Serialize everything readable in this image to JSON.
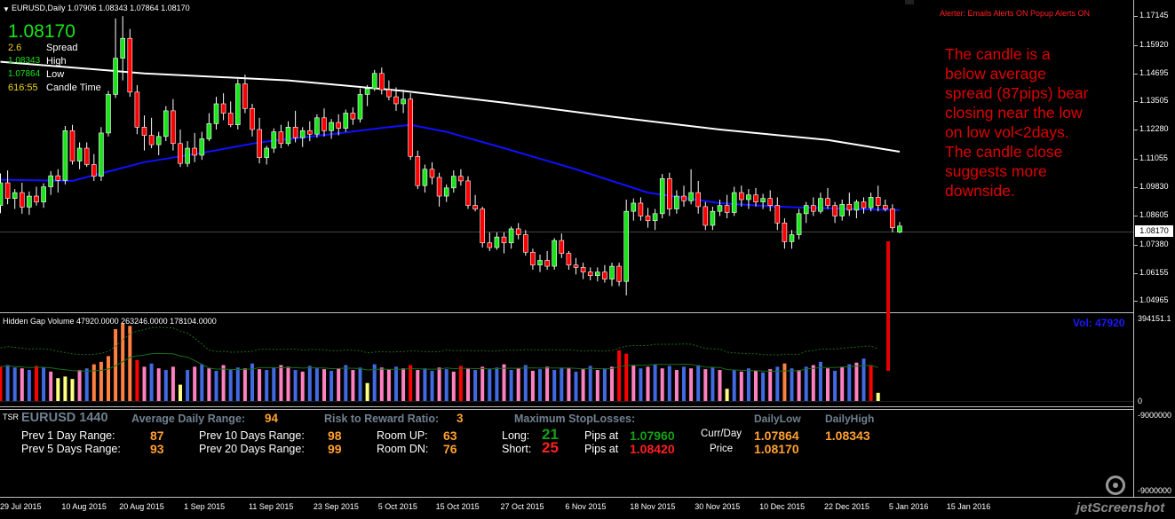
{
  "chart": {
    "header": "EURUSD,Daily  1.07906 1.08343 1.07864 1.08170",
    "alerter": "Alerter:  Emails Alerts ON  Popup Alerts ON",
    "price_big": "1.08170",
    "info": [
      {
        "value": "2.6",
        "label": "Spread",
        "color": "#f0d020"
      },
      {
        "value": "1.08343",
        "label": "High",
        "color": "#19e619"
      },
      {
        "value": "1.07864",
        "label": "Low",
        "color": "#19e619"
      },
      {
        "value": "616:55",
        "label": "Candle Time",
        "color": "#f0d020"
      }
    ],
    "comment": [
      "The candle is a",
      "below average",
      "spread (87pips) bear",
      "closing near the low",
      "on low vol<2days.",
      "The candle close",
      "suggests more",
      "downside."
    ],
    "price_axis": [
      "1.17145",
      "1.15920",
      "1.14695",
      "1.13505",
      "1.12280",
      "1.11055",
      "1.09830",
      "1.08605",
      "1.07380",
      "1.06155",
      "1.04965"
    ],
    "current_price_label": "1.08170",
    "price_range": [
      1.0448,
      1.1765
    ],
    "colors": {
      "bull": "#19e619",
      "bear": "#ff0000",
      "ma_fast": "#1010ff",
      "ma_slow": "#ffffff",
      "annotation": "#e00000"
    }
  },
  "volume": {
    "header": "Hidden Gap Volume 47920.0000 263246.0000 178104.0000",
    "vol_label": "Vol:  47920",
    "axis": [
      "394151.1",
      "0",
      "-9000000"
    ]
  },
  "dates": [
    "29 Jul 2015",
    "10 Aug 2015",
    "20 Aug 2015",
    "1 Sep 2015",
    "11 Sep 2015",
    "23 Sep 2015",
    "5 Oct 2015",
    "15 Oct 2015",
    "27 Oct 2015",
    "6 Nov 2015",
    "18 Nov 2015",
    "30 Nov 2015",
    "10 Dec 2015",
    "22 Dec 2015",
    "5 Jan 2016",
    "15 Jan 2016"
  ],
  "bottom_axis": "-9000000",
  "watermark": "jetScreenshot",
  "tsr": {
    "tag": "TSR",
    "title": "EURUSD 1440",
    "adr_label": "Average Daily Range:",
    "adr_value": "94",
    "rr_label": "Risk to Reward Ratio:",
    "rr_value": "3",
    "msl_label": "Maximum  StopLosses:",
    "prev1_label": "Prev 1 Day Range:",
    "prev1_value": "87",
    "prev5_label": "Prev 5 Days Range:",
    "prev5_value": "93",
    "prev10_label": "Prev 10 Days Range:",
    "prev10_value": "98",
    "prev20_label": "Prev 20 Days Range:",
    "prev20_value": "99",
    "room_up_label": "Room UP:",
    "room_up_value": "63",
    "room_dn_label": "Room DN:",
    "room_dn_value": "76",
    "long_label": "Long:",
    "long_value": "21",
    "short_label": "Short:",
    "short_value": "25",
    "pips_at_label": "Pips at",
    "long_pips": "1.07960",
    "short_pips": "1.08420",
    "currday_label": "Curr/Day",
    "price_label": "Price",
    "daily_low_label": "DailyLow",
    "daily_high_label": "DailyHigh",
    "daily_low": "1.07864",
    "daily_high": "1.08343",
    "price": "1.08170"
  },
  "candles": [
    [
      1.0905,
      1.1042,
      1.0872,
      1.1002
    ],
    [
      1.1002,
      1.1055,
      1.091,
      1.0935
    ],
    [
      1.0935,
      1.0975,
      1.089,
      1.096
    ],
    [
      1.096,
      1.1002,
      1.087,
      1.0898
    ],
    [
      1.0898,
      1.0965,
      1.0865,
      1.0945
    ],
    [
      1.0945,
      1.0985,
      1.0905,
      1.092
    ],
    [
      1.092,
      1.1,
      1.0895,
      1.0985
    ],
    [
      1.0985,
      1.1052,
      1.095,
      1.1032
    ],
    [
      1.1032,
      1.106,
      1.096,
      1.1012
    ],
    [
      1.1012,
      1.1245,
      1.0995,
      1.1225
    ],
    [
      1.1225,
      1.125,
      1.108,
      1.1095
    ],
    [
      1.1095,
      1.1175,
      1.106,
      1.115
    ],
    [
      1.115,
      1.1175,
      1.107,
      1.108
    ],
    [
      1.108,
      1.1125,
      1.101,
      1.103
    ],
    [
      1.103,
      1.124,
      1.101,
      1.1215
    ],
    [
      1.1215,
      1.1395,
      1.12,
      1.138
    ],
    [
      1.138,
      1.1705,
      1.1365,
      1.1535
    ],
    [
      1.1535,
      1.1715,
      1.144,
      1.162
    ],
    [
      1.162,
      1.166,
      1.137,
      1.139
    ],
    [
      1.139,
      1.142,
      1.121,
      1.124
    ],
    [
      1.124,
      1.129,
      1.114,
      1.1205
    ],
    [
      1.1205,
      1.128,
      1.115,
      1.1165
    ],
    [
      1.1165,
      1.122,
      1.112,
      1.12
    ],
    [
      1.12,
      1.133,
      1.118,
      1.131
    ],
    [
      1.131,
      1.136,
      1.114,
      1.117
    ],
    [
      1.117,
      1.123,
      1.107,
      1.1085
    ],
    [
      1.1085,
      1.118,
      1.107,
      1.115
    ],
    [
      1.115,
      1.1215,
      1.109,
      1.112
    ],
    [
      1.112,
      1.122,
      1.11,
      1.119
    ],
    [
      1.119,
      1.13,
      1.118,
      1.1255
    ],
    [
      1.1255,
      1.137,
      1.123,
      1.134
    ],
    [
      1.134,
      1.1385,
      1.127,
      1.13
    ],
    [
      1.13,
      1.135,
      1.124,
      1.125
    ],
    [
      1.125,
      1.1445,
      1.123,
      1.1425
    ],
    [
      1.1425,
      1.1465,
      1.13,
      1.132
    ],
    [
      1.132,
      1.134,
      1.12,
      1.123
    ],
    [
      1.123,
      1.128,
      1.1085,
      1.111
    ],
    [
      1.111,
      1.116,
      1.108,
      1.115
    ],
    [
      1.115,
      1.1235,
      1.113,
      1.122
    ],
    [
      1.122,
      1.125,
      1.115,
      1.117
    ],
    [
      1.117,
      1.1265,
      1.116,
      1.124
    ],
    [
      1.124,
      1.131,
      1.1175,
      1.1195
    ],
    [
      1.1195,
      1.124,
      1.1155,
      1.1225
    ],
    [
      1.1225,
      1.1265,
      1.118,
      1.121
    ],
    [
      1.121,
      1.1295,
      1.1195,
      1.128
    ],
    [
      1.128,
      1.132,
      1.12,
      1.1225
    ],
    [
      1.1225,
      1.1275,
      1.119,
      1.126
    ],
    [
      1.126,
      1.1295,
      1.1205,
      1.1235
    ],
    [
      1.1235,
      1.1315,
      1.122,
      1.13
    ],
    [
      1.13,
      1.1325,
      1.125,
      1.1275
    ],
    [
      1.1275,
      1.1405,
      1.126,
      1.138
    ],
    [
      1.138,
      1.142,
      1.133,
      1.1405
    ],
    [
      1.1405,
      1.1485,
      1.1395,
      1.147
    ],
    [
      1.147,
      1.1495,
      1.138,
      1.14
    ],
    [
      1.14,
      1.144,
      1.1355,
      1.137
    ],
    [
      1.137,
      1.141,
      1.131,
      1.134
    ],
    [
      1.134,
      1.14,
      1.13,
      1.136
    ],
    [
      1.136,
      1.1385,
      1.11,
      1.1115
    ],
    [
      1.1115,
      1.114,
      1.0975,
      1.099
    ],
    [
      1.099,
      1.108,
      1.096,
      1.106
    ],
    [
      1.106,
      1.109,
      1.0995,
      1.1025
    ],
    [
      1.1025,
      1.1045,
      1.09,
      1.0945
    ],
    [
      1.0945,
      1.0995,
      1.092,
      1.098
    ],
    [
      1.098,
      1.1055,
      1.096,
      1.103
    ],
    [
      1.103,
      1.106,
      1.099,
      1.101
    ],
    [
      1.101,
      1.103,
      1.089,
      1.0905
    ],
    [
      1.0905,
      1.095,
      1.088,
      1.089
    ],
    [
      1.089,
      1.09,
      1.0725,
      1.0745
    ],
    [
      1.0745,
      1.079,
      1.071,
      1.0725
    ],
    [
      1.0725,
      1.079,
      1.0715,
      1.077
    ],
    [
      1.077,
      1.079,
      1.07,
      1.0745
    ],
    [
      1.0745,
      1.0815,
      1.072,
      1.0805
    ],
    [
      1.0805,
      1.083,
      1.076,
      1.078
    ],
    [
      1.078,
      1.08,
      1.069,
      1.0705
    ],
    [
      1.0705,
      1.072,
      1.063,
      1.065
    ],
    [
      1.065,
      1.0695,
      1.062,
      1.067
    ],
    [
      1.067,
      1.071,
      1.063,
      1.0645
    ],
    [
      1.0645,
      1.0765,
      1.063,
      1.0755
    ],
    [
      1.0755,
      1.0785,
      1.068,
      1.07
    ],
    [
      1.07,
      1.071,
      1.063,
      1.065
    ],
    [
      1.065,
      1.068,
      1.061,
      1.064
    ],
    [
      1.064,
      1.066,
      1.059,
      1.062
    ],
    [
      1.062,
      1.064,
      1.0585,
      1.0605
    ],
    [
      1.0605,
      1.064,
      1.058,
      1.062
    ],
    [
      1.062,
      1.065,
      1.0575,
      1.059
    ],
    [
      1.059,
      1.066,
      1.056,
      1.0645
    ],
    [
      1.0645,
      1.066,
      1.056,
      1.058
    ],
    [
      1.058,
      1.093,
      1.052,
      1.088
    ],
    [
      1.088,
      1.0935,
      1.084,
      1.0915
    ],
    [
      1.0915,
      1.094,
      1.084,
      1.086
    ],
    [
      1.086,
      1.0895,
      1.081,
      1.084
    ],
    [
      1.084,
      1.089,
      1.08,
      1.087
    ],
    [
      1.087,
      1.104,
      1.085,
      1.102
    ],
    [
      1.102,
      1.1045,
      1.086,
      1.089
    ],
    [
      1.089,
      1.097,
      1.087,
      1.0945
    ],
    [
      1.0945,
      1.099,
      1.09,
      1.0925
    ],
    [
      1.0925,
      1.106,
      1.091,
      1.096
    ],
    [
      1.096,
      1.101,
      1.087,
      1.09
    ],
    [
      1.09,
      1.092,
      1.08,
      1.082
    ],
    [
      1.082,
      1.09,
      1.08,
      1.088
    ],
    [
      1.088,
      1.093,
      1.086,
      1.0905
    ],
    [
      1.0905,
      1.095,
      1.085,
      1.0875
    ],
    [
      1.0875,
      1.0985,
      1.086,
      1.096
    ],
    [
      1.096,
      1.099,
      1.09,
      1.093
    ],
    [
      1.093,
      1.0975,
      1.089,
      1.095
    ],
    [
      1.095,
      1.098,
      1.09,
      1.092
    ],
    [
      1.092,
      1.0955,
      1.089,
      1.0935
    ],
    [
      1.0935,
      1.097,
      1.088,
      1.0905
    ],
    [
      1.0905,
      1.094,
      1.08,
      1.083
    ],
    [
      1.083,
      1.085,
      1.072,
      1.075
    ],
    [
      1.075,
      1.08,
      1.072,
      1.078
    ],
    [
      1.078,
      1.089,
      1.076,
      1.087
    ],
    [
      1.087,
      1.092,
      1.083,
      1.0905
    ],
    [
      1.0905,
      1.094,
      1.086,
      1.088
    ],
    [
      1.088,
      1.096,
      1.087,
      1.0935
    ],
    [
      1.0935,
      1.098,
      1.089,
      1.0905
    ],
    [
      1.0905,
      1.092,
      1.083,
      1.086
    ],
    [
      1.086,
      1.093,
      1.084,
      1.091
    ],
    [
      1.091,
      1.096,
      1.086,
      1.0885
    ],
    [
      1.0885,
      1.093,
      1.085,
      1.092
    ],
    [
      1.092,
      1.094,
      1.087,
      1.0895
    ],
    [
      1.0895,
      1.096,
      1.088,
      1.094
    ],
    [
      1.094,
      1.099,
      1.088,
      1.0905
    ],
    [
      1.0905,
      1.093,
      1.088,
      1.089
    ],
    [
      1.089,
      1.091,
      1.079,
      1.081
    ],
    [
      1.07906,
      1.08343,
      1.07864,
      1.0817
    ]
  ],
  "volumes": [
    [
      42,
      "#ff0000"
    ],
    [
      44,
      "#4169e1"
    ],
    [
      41,
      "#4169e1"
    ],
    [
      40,
      "#ff80c0"
    ],
    [
      38,
      "#4169e1"
    ],
    [
      43,
      "#ff0000"
    ],
    [
      41,
      "#4169e1"
    ],
    [
      36,
      "#ff80c0"
    ],
    [
      28,
      "#ffff80"
    ],
    [
      30,
      "#ffff80"
    ],
    [
      27,
      "#ffff80"
    ],
    [
      38,
      "#ff80c0"
    ],
    [
      40,
      "#4169e1"
    ],
    [
      45,
      "#ff8040"
    ],
    [
      48,
      "#ff8040"
    ],
    [
      55,
      "#ff8040"
    ],
    [
      88,
      "#ff8040"
    ],
    [
      95,
      "#ff8040"
    ],
    [
      92,
      "#ff8040"
    ],
    [
      50,
      "#ff0000"
    ],
    [
      42,
      "#ff80c0"
    ],
    [
      46,
      "#4169e1"
    ],
    [
      40,
      "#ff80c0"
    ],
    [
      38,
      "#4169e1"
    ],
    [
      42,
      "#ff80c0"
    ],
    [
      20,
      "#ffff80"
    ],
    [
      38,
      "#4169e1"
    ],
    [
      42,
      "#ff80c0"
    ],
    [
      45,
      "#4169e1"
    ],
    [
      40,
      "#ff80c0"
    ],
    [
      37,
      "#4169e1"
    ],
    [
      44,
      "#ff80c0"
    ],
    [
      38,
      "#4169e1"
    ],
    [
      41,
      "#4169e1"
    ],
    [
      40,
      "#ff80c0"
    ],
    [
      46,
      "#4169e1"
    ],
    [
      39,
      "#ff80c0"
    ],
    [
      38,
      "#4169e1"
    ],
    [
      41,
      "#4169e1"
    ],
    [
      44,
      "#ff80c0"
    ],
    [
      42,
      "#ff80c0"
    ],
    [
      38,
      "#4169e1"
    ],
    [
      36,
      "#ff80c0"
    ],
    [
      43,
      "#4169e1"
    ],
    [
      40,
      "#4169e1"
    ],
    [
      39,
      "#ff80c0"
    ],
    [
      37,
      "#4169e1"
    ],
    [
      40,
      "#ff80c0"
    ],
    [
      44,
      "#4169e1"
    ],
    [
      38,
      "#ff80c0"
    ],
    [
      41,
      "#4169e1"
    ],
    [
      22,
      "#ffff80"
    ],
    [
      45,
      "#4169e1"
    ],
    [
      41,
      "#ff80c0"
    ],
    [
      39,
      "#ff80c0"
    ],
    [
      42,
      "#4169e1"
    ],
    [
      40,
      "#ff80c0"
    ],
    [
      44,
      "#ff0000"
    ],
    [
      38,
      "#ff80c0"
    ],
    [
      40,
      "#4169e1"
    ],
    [
      37,
      "#4169e1"
    ],
    [
      41,
      "#ff80c0"
    ],
    [
      39,
      "#4169e1"
    ],
    [
      36,
      "#ff80c0"
    ],
    [
      43,
      "#ff0000"
    ],
    [
      40,
      "#ff80c0"
    ],
    [
      38,
      "#4169e1"
    ],
    [
      42,
      "#ff80c0"
    ],
    [
      39,
      "#4169e1"
    ],
    [
      41,
      "#4169e1"
    ],
    [
      45,
      "#ff80c0"
    ],
    [
      38,
      "#4169e1"
    ],
    [
      40,
      "#ff80c0"
    ],
    [
      44,
      "#4169e1"
    ],
    [
      37,
      "#ff80c0"
    ],
    [
      39,
      "#4169e1"
    ],
    [
      42,
      "#ff80c0"
    ],
    [
      38,
      "#4169e1"
    ],
    [
      41,
      "#4169e1"
    ],
    [
      40,
      "#ff80c0"
    ],
    [
      36,
      "#4169e1"
    ],
    [
      39,
      "#ff80c0"
    ],
    [
      43,
      "#4169e1"
    ],
    [
      38,
      "#ff80c0"
    ],
    [
      40,
      "#4169e1"
    ],
    [
      42,
      "#ff80c0"
    ],
    [
      62,
      "#ff0000"
    ],
    [
      58,
      "#ff0000"
    ],
    [
      44,
      "#ff80c0"
    ],
    [
      40,
      "#4169e1"
    ],
    [
      42,
      "#ff80c0"
    ],
    [
      45,
      "#4169e1"
    ],
    [
      40,
      "#ff80c0"
    ],
    [
      43,
      "#4169e1"
    ],
    [
      38,
      "#ff80c0"
    ],
    [
      42,
      "#4169e1"
    ],
    [
      40,
      "#ff80c0"
    ],
    [
      44,
      "#4169e1"
    ],
    [
      39,
      "#ff80c0"
    ],
    [
      41,
      "#4169e1"
    ],
    [
      38,
      "#ff80c0"
    ],
    [
      15,
      "#ffff80"
    ],
    [
      38,
      "#4169e1"
    ],
    [
      36,
      "#ff80c0"
    ],
    [
      40,
      "#4169e1"
    ],
    [
      37,
      "#ff80c0"
    ],
    [
      35,
      "#4169e1"
    ],
    [
      39,
      "#ff80c0"
    ],
    [
      42,
      "#4169e1"
    ],
    [
      46,
      "#ff8040"
    ],
    [
      40,
      "#4169e1"
    ],
    [
      38,
      "#ff80c0"
    ],
    [
      42,
      "#4169e1"
    ],
    [
      44,
      "#ff80c0"
    ],
    [
      48,
      "#4169e1"
    ],
    [
      40,
      "#ff80c0"
    ],
    [
      37,
      "#4169e1"
    ],
    [
      42,
      "#ff80c0"
    ],
    [
      45,
      "#4169e1"
    ],
    [
      47,
      "#ff80c0"
    ],
    [
      52,
      "#4169e1"
    ],
    [
      44,
      "#ff0000"
    ],
    [
      10,
      "#ffff80"
    ]
  ],
  "ma_fast": [
    [
      0,
      1.1015
    ],
    [
      10,
      1.101
    ],
    [
      15,
      1.105
    ],
    [
      20,
      1.109
    ],
    [
      28,
      1.113
    ],
    [
      36,
      1.1175
    ],
    [
      46,
      1.121
    ],
    [
      54,
      1.124
    ],
    [
      57,
      1.125
    ],
    [
      62,
      1.122
    ],
    [
      70,
      1.115
    ],
    [
      80,
      1.106
    ],
    [
      90,
      1.096
    ],
    [
      100,
      1.0915
    ],
    [
      108,
      1.09
    ],
    [
      118,
      1.089
    ],
    [
      125,
      1.0885
    ]
  ],
  "ma_slow": [
    [
      0,
      1.152
    ],
    [
      20,
      1.147
    ],
    [
      40,
      1.144
    ],
    [
      56,
      1.1395
    ],
    [
      70,
      1.1345
    ],
    [
      85,
      1.1285
    ],
    [
      100,
      1.123
    ],
    [
      115,
      1.1185
    ],
    [
      125,
      1.1135
    ]
  ]
}
